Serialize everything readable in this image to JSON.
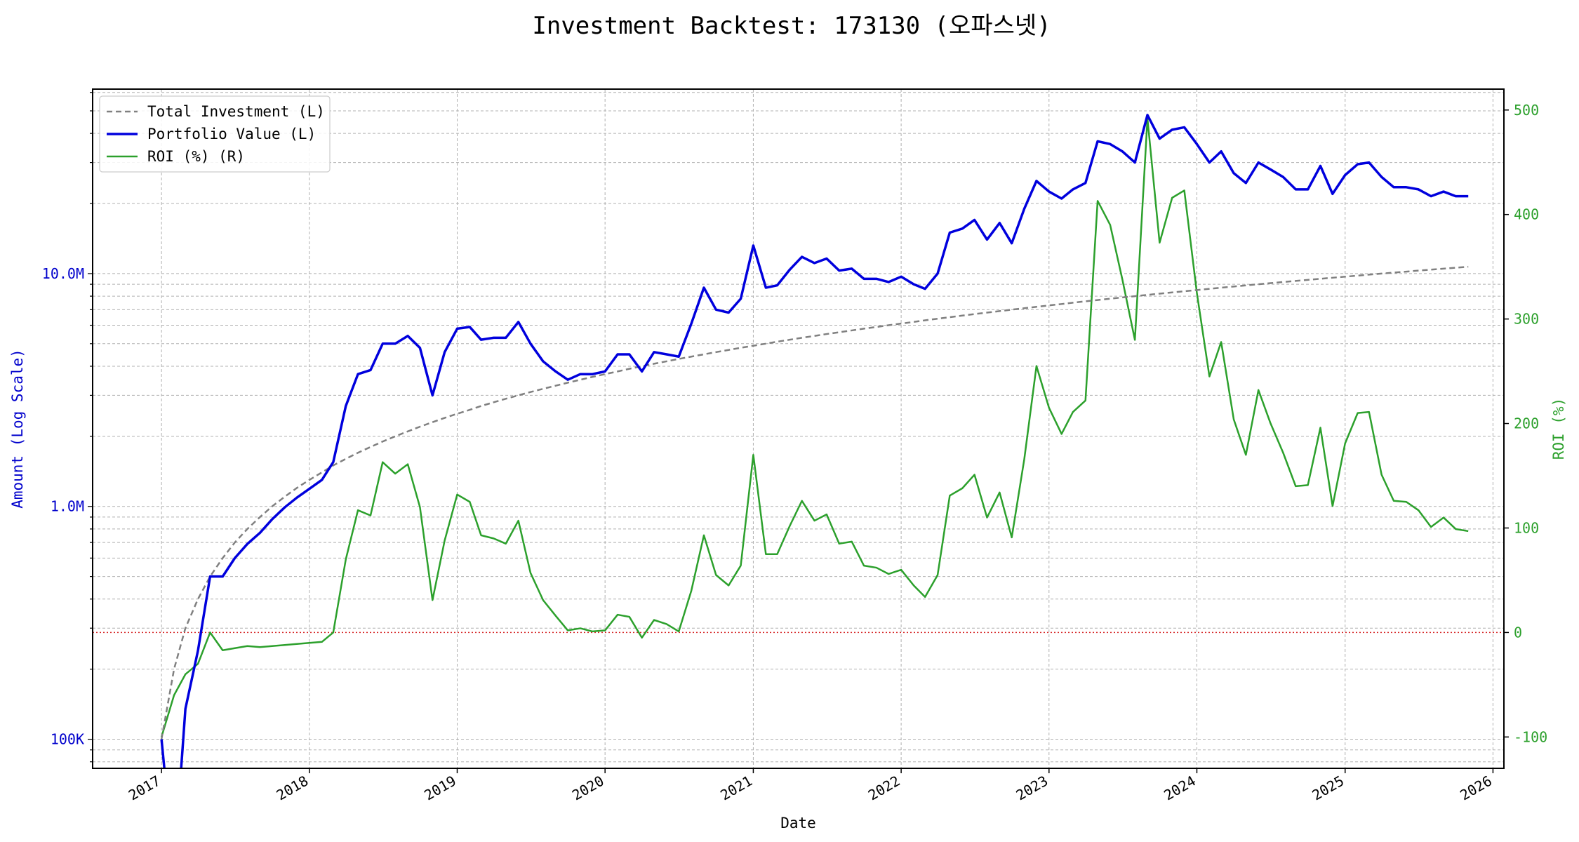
{
  "chart_data": {
    "type": "line",
    "title": "Investment Backtest: 173130 (오파스넷)",
    "xlabel": "Date",
    "ylabel_left": "Amount (Log Scale)",
    "ylabel_right": "ROI (%)",
    "yscale_left": "log",
    "ylim_left": [
      75000,
      62000000
    ],
    "ylim_right": [
      -130,
      520
    ],
    "xlim": [
      "2016-07-15",
      "2026-01-28"
    ],
    "x_ticks": [
      "2017",
      "2018",
      "2019",
      "2020",
      "2021",
      "2022",
      "2023",
      "2024",
      "2025",
      "2026"
    ],
    "y_ticks_left": [
      {
        "value": 100000,
        "label": "100K"
      },
      {
        "value": 1000000,
        "label": "1.0M"
      },
      {
        "value": 10000000,
        "label": "10.0M"
      }
    ],
    "y_ticks_right": [
      -100,
      0,
      100,
      200,
      300,
      400,
      500
    ],
    "reference_line": {
      "axis": "right",
      "value": 0,
      "style": "dotted",
      "color": "#d62728"
    },
    "grid": true,
    "legend_position": "top-left",
    "dates": [
      "2017-01",
      "2017-02",
      "2017-03",
      "2017-04",
      "2017-05",
      "2017-06",
      "2017-07",
      "2017-08",
      "2017-09",
      "2017-10",
      "2017-11",
      "2017-12",
      "2018-01",
      "2018-02",
      "2018-03",
      "2018-04",
      "2018-05",
      "2018-06",
      "2018-07",
      "2018-08",
      "2018-09",
      "2018-10",
      "2018-11",
      "2018-12",
      "2019-01",
      "2019-02",
      "2019-03",
      "2019-04",
      "2019-05",
      "2019-06",
      "2019-07",
      "2019-08",
      "2019-09",
      "2019-10",
      "2019-11",
      "2019-12",
      "2020-01",
      "2020-02",
      "2020-03",
      "2020-04",
      "2020-05",
      "2020-06",
      "2020-07",
      "2020-08",
      "2020-09",
      "2020-10",
      "2020-11",
      "2020-12",
      "2021-01",
      "2021-02",
      "2021-03",
      "2021-04",
      "2021-05",
      "2021-06",
      "2021-07",
      "2021-08",
      "2021-09",
      "2021-10",
      "2021-11",
      "2021-12",
      "2022-01",
      "2022-02",
      "2022-03",
      "2022-04",
      "2022-05",
      "2022-06",
      "2022-07",
      "2022-08",
      "2022-09",
      "2022-10",
      "2022-11",
      "2022-12",
      "2023-01",
      "2023-02",
      "2023-03",
      "2023-04",
      "2023-05",
      "2023-06",
      "2023-07",
      "2023-08",
      "2023-09",
      "2023-10",
      "2023-11",
      "2023-12",
      "2024-01",
      "2024-02",
      "2024-03",
      "2024-04",
      "2024-05",
      "2024-06",
      "2024-07",
      "2024-08",
      "2024-09",
      "2024-10",
      "2024-11",
      "2024-12",
      "2025-01",
      "2025-02",
      "2025-03",
      "2025-04",
      "2025-05",
      "2025-06",
      "2025-07",
      "2025-08",
      "2025-09",
      "2025-10",
      "2025-11"
    ],
    "series": [
      {
        "name": "Total Investment (L)",
        "axis": "left",
        "color": "#808080",
        "style": "dashed",
        "values": [
          100000,
          200000,
          300000,
          400000,
          500000,
          600000,
          700000,
          800000,
          900000,
          1000000,
          1100000,
          1200000,
          1300000,
          1400000,
          1500000,
          1600000,
          1700000,
          1800000,
          1900000,
          2000000,
          2100000,
          2200000,
          2300000,
          2400000,
          2500000,
          2600000,
          2700000,
          2800000,
          2900000,
          3000000,
          3100000,
          3200000,
          3300000,
          3400000,
          3500000,
          3600000,
          3700000,
          3800000,
          3900000,
          4000000,
          4100000,
          4200000,
          4300000,
          4400000,
          4500000,
          4600000,
          4700000,
          4800000,
          4900000,
          5000000,
          5100000,
          5200000,
          5300000,
          5400000,
          5500000,
          5600000,
          5700000,
          5800000,
          5900000,
          6000000,
          6100000,
          6200000,
          6300000,
          6400000,
          6500000,
          6600000,
          6700000,
          6800000,
          6900000,
          7000000,
          7100000,
          7200000,
          7300000,
          7400000,
          7500000,
          7600000,
          7700000,
          7800000,
          7900000,
          8000000,
          8100000,
          8200000,
          8300000,
          8400000,
          8500000,
          8600000,
          8700000,
          8800000,
          8900000,
          9000000,
          9100000,
          9200000,
          9300000,
          9400000,
          9500000,
          9600000,
          9700000,
          9800000,
          9900000,
          10000000,
          10100000,
          10200000,
          10300000,
          10400000,
          10500000,
          10600000,
          10700000
        ]
      },
      {
        "name": "Portfolio Value (L)",
        "axis": "left",
        "color": "#0000dd",
        "style": "solid",
        "values": [
          100000,
          28000,
          135000,
          240000,
          500000,
          500000,
          600000,
          690000,
          770000,
          880000,
          990000,
          1090000,
          1190000,
          1300000,
          1550000,
          2700000,
          3700000,
          3850000,
          5000000,
          5000000,
          5400000,
          4800000,
          3000000,
          4600000,
          5800000,
          5900000,
          5200000,
          5300000,
          5300000,
          6200000,
          5000000,
          4200000,
          3800000,
          3500000,
          3700000,
          3700000,
          3800000,
          4500000,
          4500000,
          3800000,
          4600000,
          4500000,
          4400000,
          6100000,
          8700000,
          7000000,
          6800000,
          7800000,
          13200000,
          8700000,
          8900000,
          10400000,
          11800000,
          11100000,
          11600000,
          10300000,
          10500000,
          9500000,
          9500000,
          9200000,
          9700000,
          9000000,
          8600000,
          10000000,
          15000000,
          15600000,
          17000000,
          14000000,
          16500000,
          13500000,
          19000000,
          25000000,
          22500000,
          21000000,
          23000000,
          24500000,
          37000000,
          36000000,
          33500000,
          30000000,
          48000000,
          38000000,
          41500000,
          42500000,
          36000000,
          30000000,
          33500000,
          27000000,
          24500000,
          30000000,
          28000000,
          26000000,
          23000000,
          23000000,
          29000000,
          22000000,
          26500000,
          29500000,
          30000000,
          26000000,
          23500000,
          23500000,
          23000000,
          21500000,
          22500000,
          21500000,
          21500000
        ]
      },
      {
        "name": "ROI (%) (R)",
        "axis": "right",
        "color": "#2ca02c",
        "style": "solid",
        "values": [
          -100,
          -60,
          -40,
          -30,
          0,
          -17,
          -15,
          -13,
          -14,
          -13,
          -12,
          -11,
          -10,
          -9,
          0,
          70,
          117,
          112,
          163,
          152,
          161,
          120,
          31,
          88,
          132,
          125,
          93,
          90,
          85,
          107,
          57,
          31,
          16,
          2,
          4,
          1,
          2,
          17,
          15,
          -5,
          12,
          8,
          1,
          40,
          93,
          55,
          45,
          64,
          170,
          75,
          75,
          102,
          126,
          107,
          113,
          85,
          87,
          64,
          62,
          56,
          60,
          45,
          34,
          55,
          131,
          138,
          151,
          110,
          134,
          91,
          166,
          255,
          215,
          190,
          211,
          222,
          413,
          390,
          338,
          280,
          492,
          373,
          416,
          423,
          325,
          245,
          278,
          204,
          170,
          232,
          200,
          172,
          140,
          141,
          196,
          121,
          181,
          210,
          211,
          151,
          126,
          125,
          117,
          101,
          110,
          99,
          97
        ]
      }
    ]
  }
}
